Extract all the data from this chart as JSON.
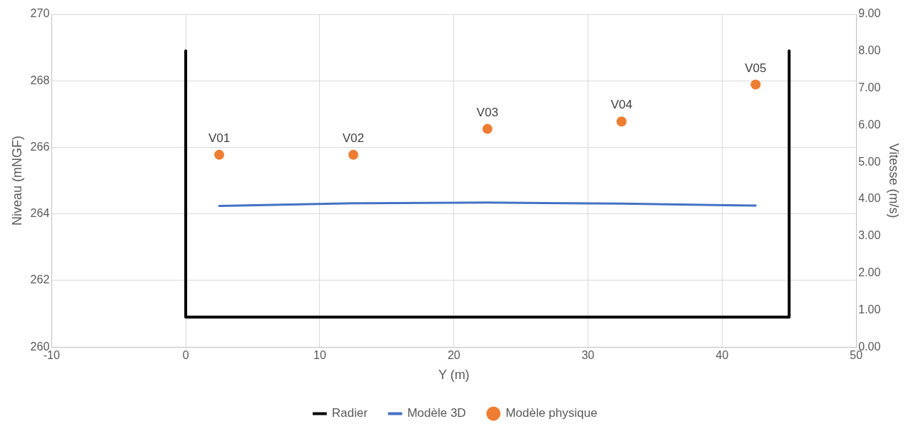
{
  "chart_data": {
    "type": "line",
    "xlabel": "Y (m)",
    "ylabel": "Niveau (mNGF)",
    "y2label": "Vitesse (m/s)",
    "xlim": [
      -10,
      50
    ],
    "xticks": [
      -10,
      0,
      10,
      20,
      30,
      40,
      50
    ],
    "ylim": [
      260,
      270
    ],
    "yticks": [
      260,
      262,
      264,
      266,
      268,
      270
    ],
    "y2lim": [
      0,
      9
    ],
    "y2ticks": [
      {
        "value": 0,
        "label": "0.00"
      },
      {
        "value": 1,
        "label": "1.00"
      },
      {
        "value": 2,
        "label": "2.00"
      },
      {
        "value": 3,
        "label": "3.00"
      },
      {
        "value": 4,
        "label": "4.00"
      },
      {
        "value": 5,
        "label": "5.00"
      },
      {
        "value": 6,
        "label": "6.00"
      },
      {
        "value": 7,
        "label": "7.00"
      },
      {
        "value": 8,
        "label": "8.00"
      },
      {
        "value": 9,
        "label": "9.00"
      }
    ],
    "grid": true,
    "legend": "bottom",
    "series": [
      {
        "name": "Radier",
        "color": "#000000",
        "x": [
          0,
          0,
          45,
          45
        ],
        "values": [
          268.9,
          260.9,
          260.9,
          268.9
        ]
      },
      {
        "name": "Modèle 3D",
        "color": "#4472c4",
        "x": [
          2.5,
          12.5,
          22.5,
          32.5,
          42.5
        ],
        "values": [
          264.24,
          264.32,
          264.34,
          264.31,
          264.25
        ]
      },
      {
        "name": "Modèle physique",
        "type": "scatter",
        "axis": "y2",
        "marker": "circle",
        "color": "#ed7d31",
        "x": [
          2.5,
          12.5,
          22.5,
          32.5,
          42.5
        ],
        "values": [
          5.2,
          5.2,
          5.9,
          6.1,
          7.1
        ],
        "value_labels": [
          "V01",
          "V02",
          "V03",
          "V04",
          "V05"
        ]
      }
    ]
  }
}
